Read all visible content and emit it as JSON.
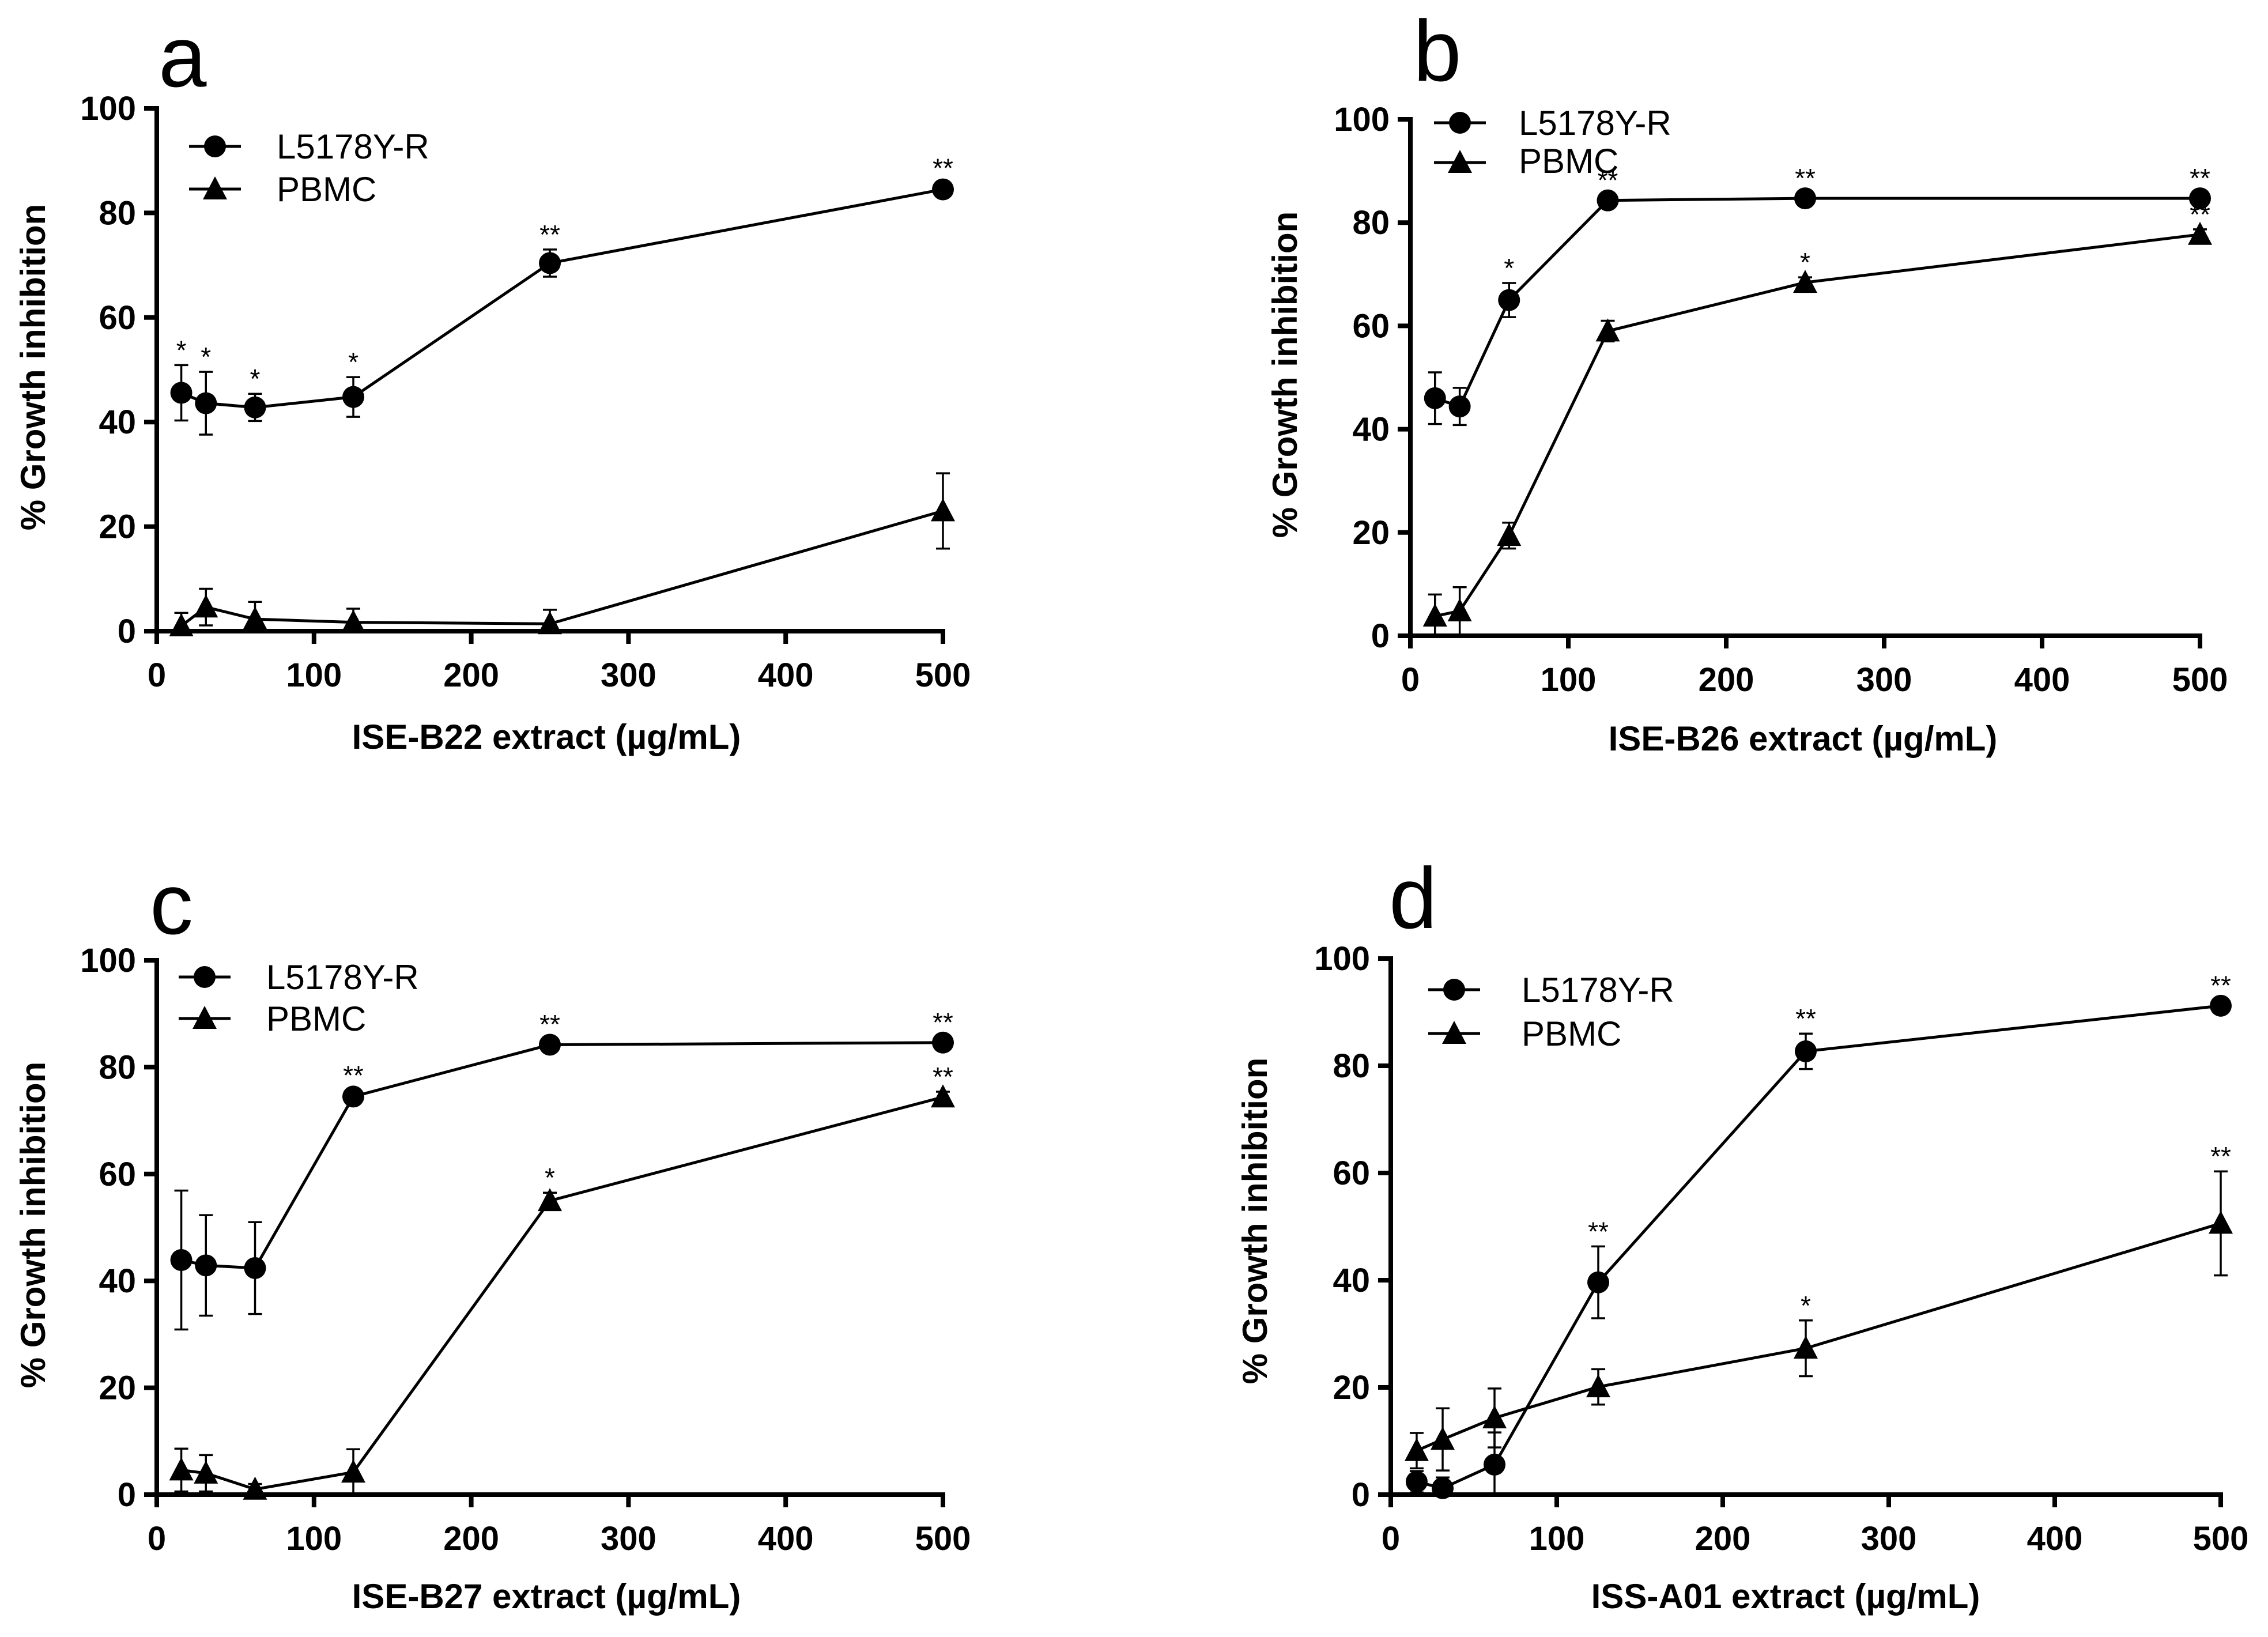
{
  "figure": {
    "panels": [
      {
        "letter": "a",
        "xlabel": "ISE-B22 extract (µg/mL)",
        "ylabel": "% Growth inhibition",
        "legend": [
          "L5178Y-R",
          "PBMC"
        ]
      },
      {
        "letter": "b",
        "xlabel": "ISE-B26 extract (µg/mL)",
        "ylabel": "% Growth inhibition",
        "legend": [
          "L5178Y-R",
          "PBMC"
        ]
      },
      {
        "letter": "c",
        "xlabel": "ISE-B27 extract (µg/mL)",
        "ylabel": "% Growth inhibition",
        "legend": [
          "L5178Y-R",
          "PBMC"
        ]
      },
      {
        "letter": "d",
        "xlabel": "ISS-A01 extract (µg/mL)",
        "ylabel": "% Growth inhibition",
        "legend": [
          "L5178Y-R",
          "PBMC"
        ]
      }
    ]
  },
  "chart_data": [
    {
      "type": "line",
      "title": "a",
      "xlabel": "ISE-B22 extract (µg/mL)",
      "ylabel": "% Growth inhibition",
      "xlim": [
        0,
        500
      ],
      "ylim": [
        0,
        100
      ],
      "xticks": [
        0,
        100,
        200,
        300,
        400,
        500
      ],
      "yticks": [
        0,
        20,
        40,
        60,
        80,
        100
      ],
      "legend_position": "top-left",
      "series": [
        {
          "name": "L5178Y-R",
          "marker": "circle",
          "x": [
            15.6,
            31.25,
            62.5,
            125,
            250,
            500
          ],
          "y": [
            45.6,
            43.6,
            42.8,
            44.8,
            70.4,
            84.5
          ],
          "err": [
            5.3,
            6.0,
            2.6,
            3.8,
            2.6,
            1.2
          ],
          "sig": [
            "*",
            "*",
            "*",
            "*",
            "**",
            "**"
          ]
        },
        {
          "name": "PBMC",
          "marker": "triangle",
          "x": [
            15.6,
            31.25,
            62.5,
            125,
            250,
            500
          ],
          "y": [
            1.0,
            4.6,
            2.3,
            1.7,
            1.4,
            23.0
          ],
          "err": [
            2.5,
            3.5,
            3.3,
            2.6,
            2.7,
            7.2
          ],
          "sig": [
            "",
            "",
            "",
            "",
            "",
            ""
          ]
        }
      ]
    },
    {
      "type": "line",
      "title": "b",
      "xlabel": "ISE-B26 extract (µg/mL)",
      "ylabel": "% Growth inhibition",
      "xlim": [
        0,
        500
      ],
      "ylim": [
        0,
        100
      ],
      "xticks": [
        0,
        100,
        200,
        300,
        400,
        500
      ],
      "yticks": [
        0,
        20,
        40,
        60,
        80,
        100
      ],
      "legend_position": "top-left",
      "series": [
        {
          "name": "L5178Y-R",
          "marker": "circle",
          "x": [
            15.6,
            31.25,
            62.5,
            125,
            250,
            500
          ],
          "y": [
            46.0,
            44.4,
            65.0,
            84.3,
            84.7,
            84.7
          ],
          "err": [
            5.0,
            3.6,
            3.3,
            1.0,
            1.0,
            1.0
          ],
          "sig": [
            "",
            "",
            "*",
            "**",
            "**",
            "**"
          ]
        },
        {
          "name": "PBMC",
          "marker": "triangle",
          "x": [
            15.6,
            31.25,
            62.5,
            125,
            250,
            500
          ],
          "y": [
            3.8,
            4.8,
            19.4,
            59.0,
            68.4,
            77.7
          ],
          "err": [
            4.2,
            4.6,
            2.5,
            2.0,
            1.0,
            1.0
          ],
          "sig": [
            "",
            "",
            "",
            "",
            "*",
            "**"
          ]
        }
      ]
    },
    {
      "type": "line",
      "title": "c",
      "xlabel": "ISE-B27 extract (µg/mL)",
      "ylabel": "% Growth inhibition",
      "xlim": [
        0,
        500
      ],
      "ylim": [
        0,
        100
      ],
      "xticks": [
        0,
        100,
        200,
        300,
        400,
        500
      ],
      "yticks": [
        0,
        20,
        40,
        60,
        80,
        100
      ],
      "legend_position": "top-left",
      "series": [
        {
          "name": "L5178Y-R",
          "marker": "circle",
          "x": [
            15.6,
            31.25,
            62.5,
            125,
            250,
            500
          ],
          "y": [
            43.9,
            42.9,
            42.4,
            74.5,
            84.2,
            84.6
          ],
          "err": [
            13.0,
            9.4,
            8.6,
            1.2,
            1.0,
            1.0
          ],
          "sig": [
            "",
            "",
            "",
            "**",
            "**",
            "**"
          ]
        },
        {
          "name": "PBMC",
          "marker": "triangle",
          "x": [
            15.6,
            31.25,
            62.5,
            125,
            250,
            500
          ],
          "y": [
            4.6,
            4.0,
            1.0,
            4.2,
            55.0,
            74.4
          ],
          "err": [
            4.0,
            3.4,
            1.0,
            4.3,
            1.5,
            1.0
          ],
          "sig": [
            "",
            "",
            "",
            "",
            "*",
            "**"
          ]
        }
      ]
    },
    {
      "type": "line",
      "title": "d",
      "xlabel": "ISS-A01 extract (µg/mL)",
      "ylabel": "% Growth inhibition",
      "xlim": [
        0,
        500
      ],
      "ylim": [
        0,
        100
      ],
      "xticks": [
        0,
        100,
        200,
        300,
        400,
        500
      ],
      "yticks": [
        0,
        20,
        40,
        60,
        80,
        100
      ],
      "legend_position": "top-left",
      "series": [
        {
          "name": "L5178Y-R",
          "marker": "circle",
          "x": [
            15.6,
            31.25,
            62.5,
            125,
            250,
            500
          ],
          "y": [
            2.4,
            1.2,
            5.6,
            39.6,
            82.7,
            91.2
          ],
          "err": [
            2.0,
            2.0,
            6.0,
            6.7,
            3.3,
            1.0
          ],
          "sig": [
            "",
            "",
            "",
            "**",
            "**",
            "**"
          ]
        },
        {
          "name": "PBMC",
          "marker": "triangle",
          "x": [
            15.6,
            31.25,
            62.5,
            125,
            250,
            500
          ],
          "y": [
            8.2,
            10.3,
            14.3,
            20.1,
            27.3,
            50.6
          ],
          "err": [
            3.3,
            5.8,
            5.5,
            3.3,
            5.2,
            9.7
          ],
          "sig": [
            "",
            "",
            "",
            "",
            "*",
            "**"
          ]
        }
      ]
    }
  ]
}
